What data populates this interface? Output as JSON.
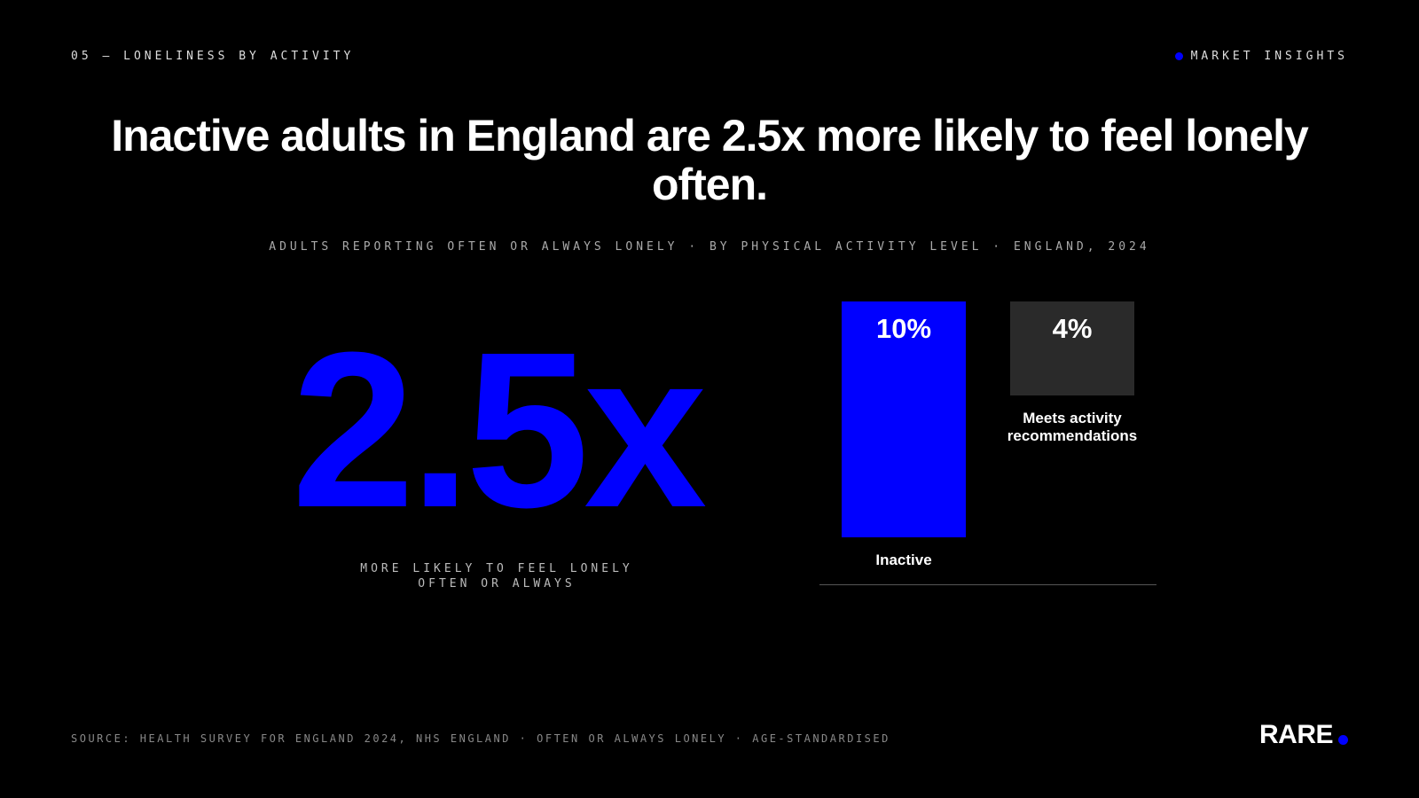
{
  "section_label": "05 — LONELINESS BY ACTIVITY",
  "tag": "MARKET INSIGHTS",
  "headline": "Inactive adults in England are 2.5x more likely to feel lonely often.",
  "stat": {
    "value_text": "2.5x",
    "caption": "MORE LIKELY TO FEEL LONELY OFTEN OR ALWAYS"
  },
  "source": "SOURCE: HEALTH SURVEY FOR ENGLAND 2024, NHS ENGLAND · OFTEN OR ALWAYS LONELY · AGE-STANDARDISED",
  "logo": "RARE",
  "chart_data": {
    "type": "bar",
    "subtitle": "ADULTS REPORTING OFTEN OR ALWAYS LONELY · BY PHYSICAL ACTIVITY LEVEL · ENGLAND, 2024",
    "categories": [
      "Inactive",
      "Meets activity recommendations"
    ],
    "values": [
      10,
      4
    ],
    "value_labels": [
      "10%",
      "4%"
    ],
    "colors": [
      "#0000ff",
      "#2a2a2a"
    ]
  }
}
